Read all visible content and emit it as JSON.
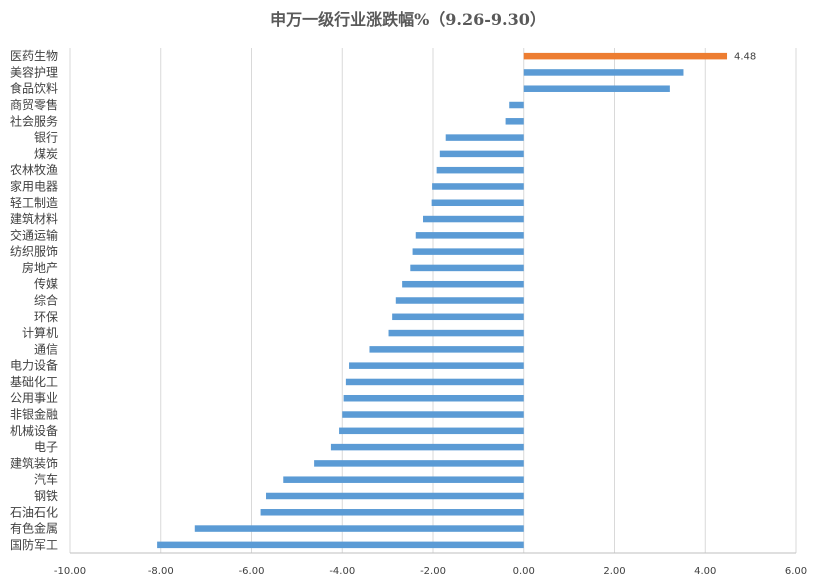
{
  "chart_data": {
    "type": "bar",
    "orientation": "horizontal",
    "title": "申万一级行业涨跌幅%（9.26-9.30）",
    "categories": [
      "医药生物",
      "美容护理",
      "食品饮料",
      "商贸零售",
      "社会服务",
      "银行",
      "煤炭",
      "农林牧渔",
      "家用电器",
      "轻工制造",
      "建筑材料",
      "交通运输",
      "纺织服饰",
      "房地产",
      "传媒",
      "综合",
      "环保",
      "计算机",
      "通信",
      "电力设备",
      "基础化工",
      "公用事业",
      "非银金融",
      "机械设备",
      "电子",
      "建筑装饰",
      "汽车",
      "钢铁",
      "石油石化",
      "有色金属",
      "国防军工"
    ],
    "values": [
      4.48,
      3.52,
      3.22,
      -0.32,
      -0.4,
      -1.72,
      -1.85,
      -1.92,
      -2.02,
      -2.03,
      -2.22,
      -2.38,
      -2.45,
      -2.5,
      -2.68,
      -2.82,
      -2.9,
      -2.98,
      -3.4,
      -3.85,
      -3.92,
      -3.97,
      -4.0,
      -4.07,
      -4.25,
      -4.62,
      -5.3,
      -5.68,
      -5.8,
      -7.25,
      -8.08
    ],
    "data_labels": [
      {
        "index": 0,
        "text": "4.48"
      }
    ],
    "xlim": [
      -10,
      6
    ],
    "x_ticks": [
      "-10.00",
      "-8.00",
      "-6.00",
      "-4.00",
      "-2.00",
      "0.00",
      "2.00",
      "4.00",
      "6.00"
    ],
    "x_tick_values": [
      -10,
      -8,
      -6,
      -4,
      -2,
      0,
      2,
      4,
      6
    ],
    "grid": true,
    "legend": "none",
    "colors": {
      "bar": "#5b9bd5",
      "highlight": "#ed7d31",
      "grid": "#d9d9d9",
      "axis": "#bfbfbf"
    },
    "highlight_index": 0
  }
}
